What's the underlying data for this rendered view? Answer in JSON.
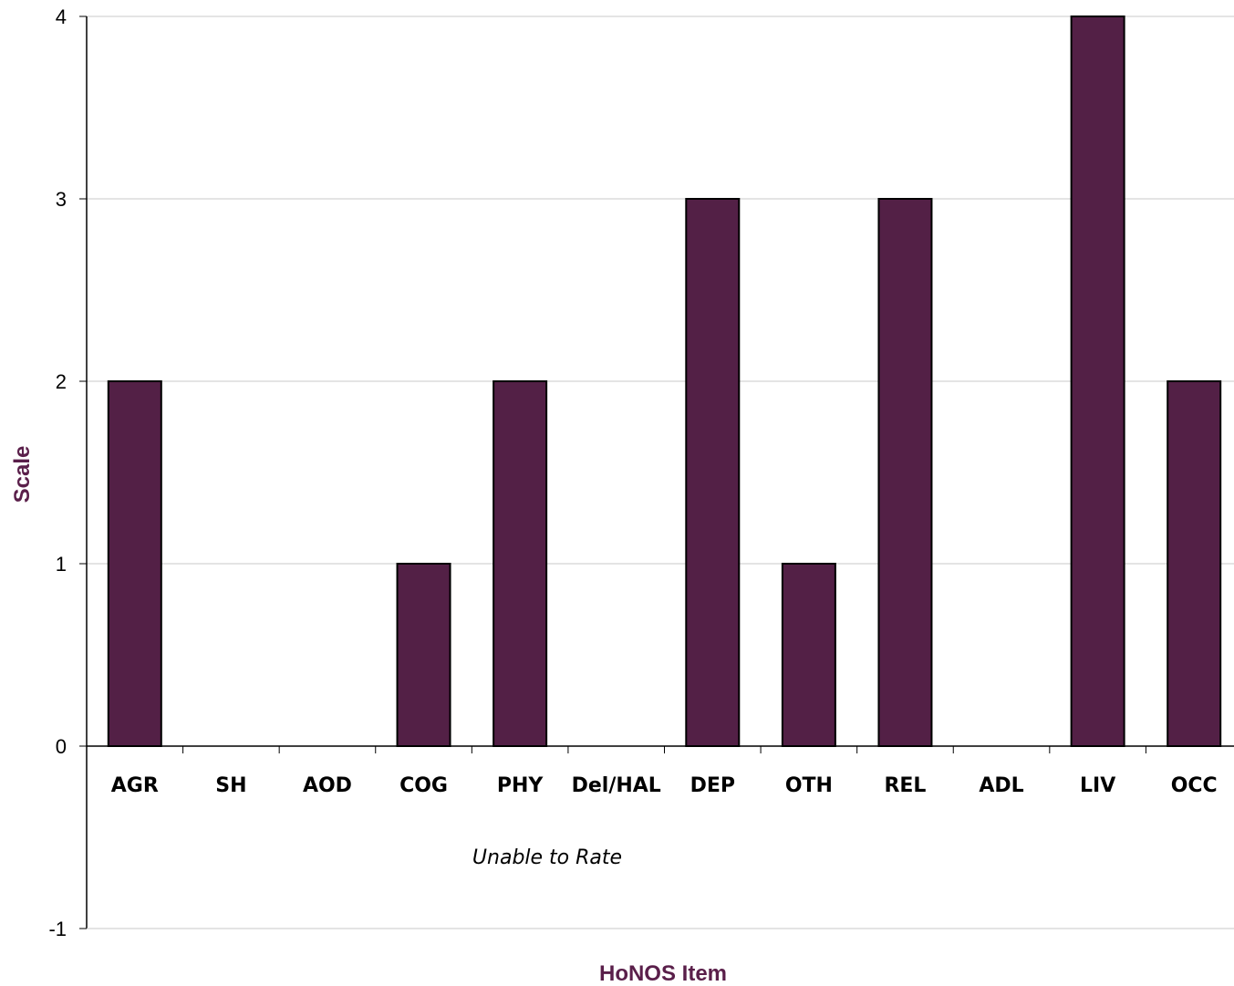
{
  "chart_data": {
    "type": "bar",
    "title": "",
    "xlabel": "HoNOS Item",
    "ylabel": "Scale",
    "categories": [
      "AGR",
      "SH",
      "AOD",
      "COG",
      "PHY",
      "Del/HAL",
      "DEP",
      "OTH",
      "REL",
      "ADL",
      "LIV",
      "OCC"
    ],
    "values": [
      2,
      0,
      0,
      1,
      2,
      0,
      3,
      1,
      3,
      0,
      4,
      2
    ],
    "ylim": [
      -1,
      4
    ],
    "yticks": [
      -1,
      0,
      1,
      2,
      3,
      4
    ],
    "grid": true,
    "annotation": "Unable to Rate",
    "colors": {
      "bar": "#532046",
      "bar_outline": "#000000",
      "axis_title": "#5a1f4a",
      "grid": "#c8c8c8"
    }
  }
}
